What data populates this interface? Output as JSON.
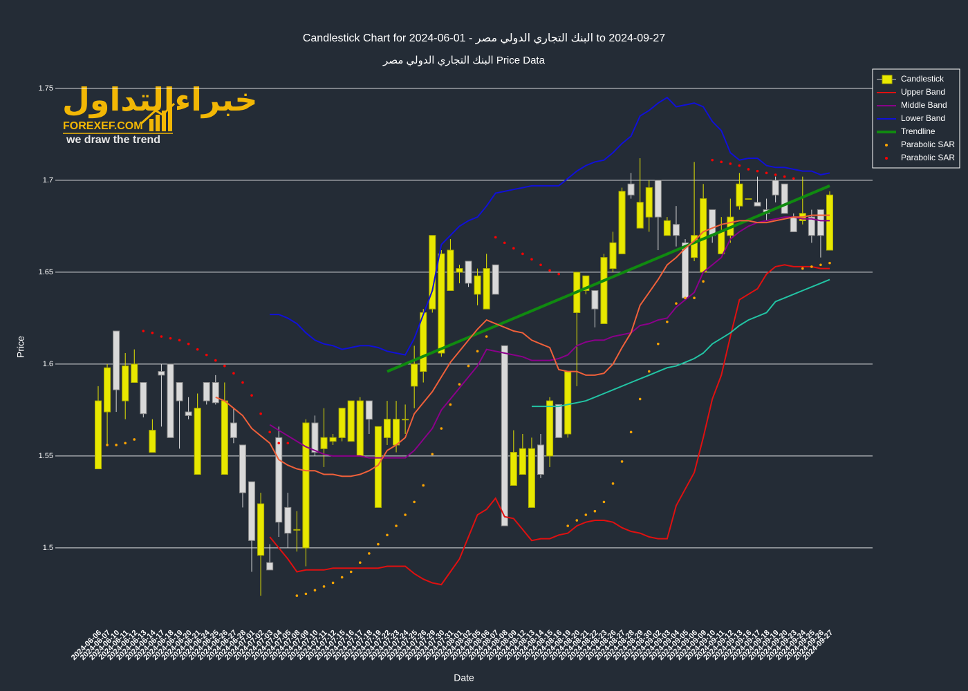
{
  "logo": {
    "arabic": "خبراءالتداول",
    "brand": "FOREXEF.COM",
    "tagline": "we draw the trend"
  },
  "chart_data": {
    "type": "candlestick",
    "title": "Candlestick Chart for البنك التجاري الدولي مصر - 01-06-2024 to 2024-09-27",
    "subtitle": "البنك التجاري الدولي مصر Price Data",
    "x_label": "Date",
    "y_label": "Price",
    "name": "Candlestick",
    "increasing_color": "#e8e800",
    "decreasing_color": "#d9d9d9",
    "ylim": [
      1.4635,
      1.7605
    ],
    "yticks": [
      1.5,
      1.55,
      1.6,
      1.65,
      1.7,
      1.75
    ],
    "grid": true,
    "legend": "top-right",
    "categories": [
      "2024-06-06",
      "2024-06-07",
      "2024-06-10",
      "2024-06-11",
      "2024-06-12",
      "2024-06-13",
      "2024-06-14",
      "2024-06-17",
      "2024-06-18",
      "2024-06-19",
      "2024-06-20",
      "2024-06-21",
      "2024-06-24",
      "2024-06-25",
      "2024-06-26",
      "2024-06-27",
      "2024-06-28",
      "2024-07-01",
      "2024-07-02",
      "2024-07-03",
      "2024-07-04",
      "2024-07-05",
      "2024-07-08",
      "2024-07-09",
      "2024-07-10",
      "2024-07-11",
      "2024-07-12",
      "2024-07-15",
      "2024-07-16",
      "2024-07-17",
      "2024-07-18",
      "2024-07-19",
      "2024-07-22",
      "2024-07-23",
      "2024-07-24",
      "2024-07-25",
      "2024-07-26",
      "2024-07-29",
      "2024-07-30",
      "2024-07-31",
      "2024-08-01",
      "2024-08-02",
      "2024-08-05",
      "2024-08-06",
      "2024-08-07",
      "2024-08-08",
      "2024-08-09",
      "2024-08-12",
      "2024-08-13",
      "2024-08-14",
      "2024-08-15",
      "2024-08-16",
      "2024-08-19",
      "2024-08-20",
      "2024-08-21",
      "2024-08-22",
      "2024-08-23",
      "2024-08-26",
      "2024-08-27",
      "2024-08-28",
      "2024-08-29",
      "2024-08-30",
      "2024-09-02",
      "2024-09-03",
      "2024-09-04",
      "2024-09-05",
      "2024-09-06",
      "2024-09-09",
      "2024-09-10",
      "2024-09-11",
      "2024-09-12",
      "2024-09-13",
      "2024-09-16",
      "2024-09-17",
      "2024-09-18",
      "2024-09-19",
      "2024-09-20",
      "2024-09-23",
      "2024-09-24",
      "2024-09-25",
      "2024-09-26",
      "2024-09-27"
    ],
    "open": [
      1.543,
      1.574,
      1.618,
      1.58,
      1.59,
      1.59,
      1.552,
      1.596,
      1.6,
      1.59,
      1.574,
      1.54,
      1.59,
      1.59,
      1.54,
      1.568,
      1.556,
      1.536,
      1.496,
      1.492,
      1.56,
      1.522,
      1.51,
      1.5,
      1.568,
      1.554,
      1.558,
      1.56,
      1.558,
      1.55,
      1.58,
      1.522,
      1.56,
      1.556,
      1.57,
      1.588,
      1.596,
      1.63,
      1.606,
      1.64,
      1.65,
      1.656,
      1.638,
      1.63,
      1.654,
      1.61,
      1.534,
      1.54,
      1.522,
      1.556,
      1.55,
      1.578,
      1.562,
      1.628,
      1.64,
      1.64,
      1.622,
      1.652,
      1.66,
      1.698,
      1.674,
      1.68,
      1.7,
      1.67,
      1.676,
      1.666,
      1.658,
      1.65,
      1.684,
      1.66,
      1.67,
      1.686,
      1.69,
      1.688,
      1.684,
      1.7,
      1.698,
      1.68,
      1.678,
      1.68,
      1.684,
      1.662
    ],
    "high": [
      1.588,
      1.6,
      1.618,
      1.606,
      1.608,
      1.59,
      1.57,
      1.6,
      1.6,
      1.59,
      1.582,
      1.584,
      1.59,
      1.594,
      1.59,
      1.576,
      1.556,
      1.536,
      1.53,
      1.502,
      1.566,
      1.53,
      1.52,
      1.57,
      1.572,
      1.576,
      1.562,
      1.576,
      1.58,
      1.582,
      1.58,
      1.566,
      1.58,
      1.58,
      1.578,
      1.61,
      1.63,
      1.67,
      1.662,
      1.668,
      1.654,
      1.656,
      1.652,
      1.66,
      1.654,
      1.61,
      1.564,
      1.562,
      1.56,
      1.562,
      1.582,
      1.578,
      1.596,
      1.65,
      1.648,
      1.64,
      1.66,
      1.672,
      1.696,
      1.704,
      1.712,
      1.7,
      1.7,
      1.68,
      1.686,
      1.668,
      1.71,
      1.698,
      1.684,
      1.68,
      1.69,
      1.704,
      1.69,
      1.702,
      1.69,
      1.702,
      1.698,
      1.682,
      1.702,
      1.684,
      1.684,
      1.694
    ],
    "low": [
      1.543,
      1.556,
      1.574,
      1.57,
      1.59,
      1.571,
      1.552,
      1.566,
      1.56,
      1.554,
      1.57,
      1.54,
      1.578,
      1.578,
      1.54,
      1.557,
      1.522,
      1.487,
      1.474,
      1.488,
      1.506,
      1.5,
      1.498,
      1.49,
      1.55,
      1.544,
      1.556,
      1.558,
      1.558,
      1.55,
      1.562,
      1.522,
      1.556,
      1.552,
      1.562,
      1.576,
      1.59,
      1.628,
      1.604,
      1.64,
      1.644,
      1.642,
      1.632,
      1.63,
      1.638,
      1.512,
      1.534,
      1.54,
      1.522,
      1.538,
      1.544,
      1.56,
      1.56,
      1.588,
      1.638,
      1.62,
      1.622,
      1.65,
      1.66,
      1.69,
      1.674,
      1.672,
      1.662,
      1.67,
      1.664,
      1.636,
      1.656,
      1.65,
      1.666,
      1.66,
      1.666,
      1.684,
      1.69,
      1.686,
      1.678,
      1.688,
      1.682,
      1.672,
      1.676,
      1.666,
      1.658,
      1.662
    ],
    "close": [
      1.58,
      1.598,
      1.586,
      1.599,
      1.6,
      1.573,
      1.564,
      1.594,
      1.56,
      1.58,
      1.572,
      1.576,
      1.58,
      1.579,
      1.58,
      1.56,
      1.53,
      1.504,
      1.524,
      1.488,
      1.514,
      1.508,
      1.51,
      1.568,
      1.552,
      1.56,
      1.56,
      1.576,
      1.58,
      1.58,
      1.57,
      1.566,
      1.57,
      1.57,
      1.57,
      1.6,
      1.628,
      1.67,
      1.66,
      1.662,
      1.652,
      1.644,
      1.648,
      1.652,
      1.638,
      1.512,
      1.552,
      1.554,
      1.554,
      1.54,
      1.58,
      1.56,
      1.596,
      1.65,
      1.648,
      1.63,
      1.658,
      1.666,
      1.694,
      1.692,
      1.688,
      1.696,
      1.68,
      1.678,
      1.67,
      1.636,
      1.67,
      1.69,
      1.67,
      1.672,
      1.68,
      1.698,
      1.69,
      1.686,
      1.682,
      1.692,
      1.682,
      1.672,
      1.682,
      1.67,
      1.67,
      1.692
    ],
    "series": [
      {
        "name": "Upper Band",
        "mode": "line",
        "color": "#e01010",
        "values": [
          null,
          null,
          null,
          null,
          null,
          null,
          null,
          null,
          null,
          null,
          null,
          null,
          null,
          null,
          null,
          null,
          null,
          null,
          null,
          1.506,
          1.5,
          1.494,
          1.487,
          1.488,
          1.488,
          1.488,
          1.489,
          1.489,
          1.489,
          1.489,
          1.489,
          1.489,
          1.49,
          1.49,
          1.49,
          1.486,
          1.483,
          1.481,
          1.48,
          1.487,
          1.494,
          1.506,
          1.518,
          1.521,
          1.527,
          1.517,
          1.516,
          1.51,
          1.504,
          1.505,
          1.505,
          1.507,
          1.508,
          1.512,
          1.514,
          1.515,
          1.515,
          1.514,
          1.511,
          1.509,
          1.508,
          1.506,
          1.505,
          1.505,
          1.523,
          1.532,
          1.541,
          1.56,
          1.581,
          1.594,
          1.615,
          1.635,
          1.638,
          1.641,
          1.649,
          1.653,
          1.654,
          1.653,
          1.653,
          1.653,
          1.652,
          1.652
        ]
      },
      {
        "name": "Middle Band",
        "mode": "line",
        "color": "#8a008a",
        "values": [
          null,
          null,
          null,
          null,
          null,
          null,
          null,
          null,
          null,
          null,
          null,
          null,
          null,
          null,
          null,
          null,
          null,
          null,
          null,
          1.567,
          1.564,
          1.561,
          1.558,
          1.555,
          1.553,
          1.551,
          1.55,
          1.55,
          1.55,
          1.55,
          1.549,
          1.549,
          1.549,
          1.549,
          1.549,
          1.553,
          1.559,
          1.565,
          1.575,
          1.581,
          1.587,
          1.593,
          1.599,
          1.608,
          1.607,
          1.606,
          1.605,
          1.604,
          1.602,
          1.602,
          1.602,
          1.603,
          1.605,
          1.61,
          1.612,
          1.613,
          1.613,
          1.615,
          1.616,
          1.617,
          1.621,
          1.622,
          1.624,
          1.625,
          1.631,
          1.635,
          1.639,
          1.65,
          1.654,
          1.658,
          1.668,
          1.672,
          1.675,
          1.677,
          1.678,
          1.679,
          1.68,
          1.68,
          1.679,
          1.679,
          1.678,
          1.678
        ]
      },
      {
        "name": "Lower Band",
        "mode": "line",
        "color": "#1010d8",
        "values": [
          null,
          null,
          null,
          null,
          null,
          null,
          null,
          null,
          null,
          null,
          null,
          null,
          null,
          null,
          null,
          null,
          null,
          null,
          null,
          1.627,
          1.627,
          1.625,
          1.622,
          1.617,
          1.613,
          1.611,
          1.61,
          1.608,
          1.609,
          1.61,
          1.61,
          1.609,
          1.607,
          1.606,
          1.605,
          1.614,
          1.627,
          1.64,
          1.665,
          1.67,
          1.675,
          1.678,
          1.68,
          1.686,
          1.693,
          1.694,
          1.695,
          1.696,
          1.697,
          1.697,
          1.697,
          1.697,
          1.701,
          1.705,
          1.708,
          1.71,
          1.711,
          1.715,
          1.72,
          1.724,
          1.735,
          1.738,
          1.742,
          1.745,
          1.74,
          1.741,
          1.742,
          1.74,
          1.732,
          1.727,
          1.715,
          1.711,
          1.712,
          1.712,
          1.708,
          1.707,
          1.707,
          1.706,
          1.705,
          1.705,
          1.703,
          1.704
        ]
      },
      {
        "name": "Trendline",
        "mode": "line",
        "color": "#108a10",
        "x": [
          "2024-07-22",
          "2024-09-27"
        ],
        "values": [
          1.596,
          1.697
        ]
      },
      {
        "name": "Parabolic SAR",
        "mode": "markers",
        "color": "#ffa500",
        "values": [
          null,
          1.556,
          1.556,
          1.557,
          1.559,
          null,
          null,
          null,
          null,
          null,
          null,
          null,
          null,
          null,
          null,
          null,
          null,
          null,
          null,
          null,
          null,
          null,
          1.474,
          1.475,
          1.477,
          1.479,
          1.481,
          1.484,
          1.487,
          1.492,
          1.497,
          1.502,
          1.507,
          1.512,
          1.518,
          1.525,
          1.534,
          1.551,
          1.565,
          1.578,
          1.589,
          1.599,
          1.607,
          1.615,
          null,
          null,
          null,
          null,
          null,
          null,
          null,
          null,
          1.512,
          1.515,
          1.518,
          1.52,
          1.525,
          1.535,
          1.547,
          1.563,
          1.581,
          1.596,
          1.611,
          1.623,
          1.633,
          1.636,
          1.636,
          1.645,
          null,
          null,
          null,
          null,
          null,
          null,
          null,
          null,
          null,
          null,
          1.652,
          1.653,
          1.654,
          1.655
        ]
      },
      {
        "name": "Parabolic SAR",
        "mode": "markers",
        "color": "#ff0000",
        "values": [
          null,
          null,
          null,
          null,
          null,
          1.618,
          1.617,
          1.615,
          1.614,
          1.613,
          1.611,
          1.608,
          1.605,
          1.602,
          1.599,
          1.595,
          1.59,
          1.583,
          1.573,
          1.563,
          1.557,
          1.557,
          null,
          null,
          null,
          null,
          null,
          null,
          null,
          null,
          null,
          null,
          null,
          null,
          null,
          null,
          null,
          null,
          null,
          null,
          null,
          null,
          null,
          null,
          1.669,
          1.666,
          1.663,
          1.66,
          1.657,
          1.654,
          1.651,
          1.649,
          null,
          null,
          null,
          null,
          null,
          null,
          null,
          null,
          null,
          null,
          null,
          null,
          null,
          null,
          null,
          null,
          1.711,
          1.71,
          1.709,
          1.708,
          1.706,
          1.705,
          1.704,
          1.703,
          1.702,
          1.701,
          null,
          null,
          null,
          null
        ]
      },
      {
        "mode": "line",
        "color": "#f0603a",
        "values": [
          null,
          null,
          null,
          null,
          null,
          null,
          null,
          null,
          null,
          null,
          null,
          null,
          null,
          1.582,
          1.58,
          1.576,
          1.572,
          1.565,
          1.561,
          1.557,
          1.548,
          1.545,
          1.543,
          1.542,
          1.542,
          1.54,
          1.54,
          1.539,
          1.539,
          1.54,
          1.542,
          1.545,
          1.553,
          1.556,
          1.56,
          1.573,
          1.579,
          1.585,
          1.593,
          1.601,
          1.607,
          1.613,
          1.619,
          1.624,
          1.622,
          1.62,
          1.618,
          1.617,
          1.613,
          1.611,
          1.609,
          1.597,
          1.596,
          1.596,
          1.594,
          1.594,
          1.595,
          1.6,
          1.609,
          1.617,
          1.632,
          1.639,
          1.646,
          1.654,
          1.658,
          1.663,
          1.667,
          1.672,
          1.674,
          1.676,
          1.677,
          1.678,
          1.678,
          1.677,
          1.677,
          1.678,
          1.679,
          1.68,
          1.68,
          1.681,
          1.681,
          1.681
        ]
      },
      {
        "mode": "line",
        "color": "#22c4a4",
        "values": [
          null,
          null,
          null,
          null,
          null,
          null,
          null,
          null,
          null,
          null,
          null,
          null,
          null,
          null,
          null,
          null,
          null,
          null,
          null,
          null,
          null,
          null,
          null,
          null,
          null,
          null,
          null,
          null,
          null,
          null,
          null,
          null,
          null,
          null,
          null,
          null,
          null,
          null,
          null,
          null,
          null,
          null,
          null,
          null,
          null,
          null,
          null,
          null,
          1.577,
          1.577,
          1.577,
          1.577,
          1.578,
          1.579,
          1.58,
          1.582,
          1.584,
          1.586,
          1.588,
          1.59,
          1.592,
          1.594,
          1.596,
          1.598,
          1.599,
          1.601,
          1.603,
          1.606,
          1.611,
          1.614,
          1.617,
          1.621,
          1.624,
          1.626,
          1.628,
          1.634,
          1.636,
          1.638,
          1.64,
          1.642,
          1.644,
          1.646
        ]
      }
    ]
  }
}
